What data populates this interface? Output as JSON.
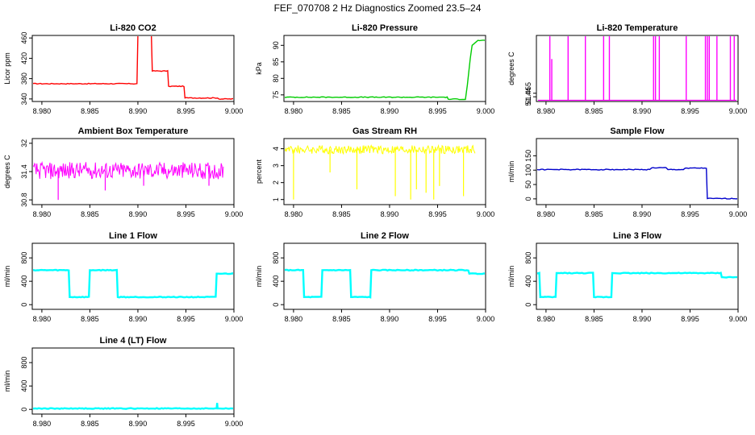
{
  "figure": {
    "title": "FEF_070708  2 Hz Diagnostics Zoomed 23.5–24"
  },
  "chart_data": [
    {
      "type": "line",
      "title": "Li-820 CO2",
      "ylabel": "Licor ppm",
      "color": "#ff0000",
      "xlim": [
        8.979,
        9.0
      ],
      "xticks": [
        "8.980",
        "8.985",
        "8.990",
        "8.995",
        "9.000"
      ],
      "ylim": [
        335,
        465
      ],
      "yticks": [
        340,
        380,
        420,
        460
      ],
      "series": [
        {
          "x": [
            8.979,
            8.9899,
            8.99,
            8.9914,
            8.9915,
            8.9931,
            8.9932,
            8.9948,
            8.9949,
            8.9983,
            8.9984,
            9.0
          ],
          "y": [
            370,
            370,
            470,
            470,
            395,
            395,
            365,
            365,
            342,
            342,
            340,
            340
          ]
        }
      ]
    },
    {
      "type": "line",
      "title": "Li-820 Pressure",
      "ylabel": "kPa",
      "color": "#00cc00",
      "xlim": [
        8.979,
        9.0
      ],
      "xticks": [
        "8.980",
        "8.985",
        "8.990",
        "8.995",
        "9.000"
      ],
      "ylim": [
        73,
        93
      ],
      "yticks": [
        75,
        80,
        85,
        90
      ],
      "series": [
        {
          "x": [
            8.979,
            8.996,
            8.9961,
            8.9979,
            8.9981,
            8.9984,
            8.9986,
            8.9992,
            9.0
          ],
          "y": [
            74.3,
            74.3,
            73.7,
            73.7,
            78,
            86,
            90,
            91.5,
            91.5
          ]
        }
      ]
    },
    {
      "type": "line",
      "title": "Li-820 Temperature",
      "ylabel": "degrees C",
      "color": "#ff00ff",
      "xlim": [
        8.979,
        9.0
      ],
      "xticks": [
        "8.980",
        "8.985",
        "8.990",
        "8.995",
        "9.000"
      ],
      "ylim": [
        51.42,
        51.7
      ],
      "yticks": [
        51.44,
        51.455
      ],
      "series": [
        {
          "x": [
            8.9804,
            8.9806,
            8.9823,
            8.9841,
            8.986,
            8.9866,
            8.9912,
            8.9914,
            8.9918,
            8.9946,
            8.9966,
            8.9968,
            8.997,
            8.9978,
            8.9992,
            8.9996
          ],
          "y": [
            51.7,
            51.6,
            51.7,
            51.7,
            51.7,
            51.7,
            51.7,
            51.7,
            51.7,
            51.7,
            51.7,
            51.7,
            51.7,
            51.7,
            51.7,
            51.7
          ]
        }
      ]
    },
    {
      "type": "line",
      "title": "Ambient Box Temperature",
      "ylabel": "degrees C",
      "color": "#ff00ff",
      "xlim": [
        8.979,
        9.0
      ],
      "xticks": [
        "8.980",
        "8.985",
        "8.990",
        "8.995",
        "9.000"
      ],
      "ylim": [
        30.7,
        32.1
      ],
      "yticks": [
        30.8,
        31.4,
        32.0
      ],
      "series": [
        {
          "base": 31.42,
          "amplitude": 0.18,
          "spikes_x": [
            8.9817,
            8.9866,
            8.9906,
            8.9974
          ],
          "spikes_y": [
            30.8,
            31.0,
            31.1,
            31.1
          ]
        }
      ]
    },
    {
      "type": "line",
      "title": "Gas Stream RH",
      "ylabel": "percent",
      "color": "#ffff00",
      "xlim": [
        8.979,
        9.0
      ],
      "xticks": [
        "8.980",
        "8.985",
        "8.990",
        "8.995",
        "9.000"
      ],
      "ylim": [
        0.7,
        4.6
      ],
      "yticks": [
        1,
        2,
        3,
        4
      ],
      "series": [
        {
          "base": 3.95,
          "amplitude": 0.25,
          "spikes_x": [
            8.98,
            8.9838,
            8.9866,
            8.9906,
            8.9922,
            8.9928,
            8.9938,
            8.9946,
            8.9952,
            8.9977
          ],
          "spikes_y": [
            1.0,
            2.6,
            1.6,
            1.2,
            1.0,
            1.6,
            1.4,
            1.0,
            1.8,
            1.2
          ]
        }
      ]
    },
    {
      "type": "line",
      "title": "Sample Flow",
      "ylabel": "ml/min",
      "color": "#0000cc",
      "xlim": [
        8.979,
        9.0
      ],
      "xticks": [
        "8.980",
        "8.985",
        "8.990",
        "8.995",
        "9.000"
      ],
      "ylim": [
        -20,
        210
      ],
      "yticks": [
        0,
        50,
        100,
        150
      ],
      "series": [
        {
          "x": [
            8.979,
            8.9908,
            8.991,
            8.9925,
            8.9927,
            8.9943,
            8.9945,
            8.9967,
            8.9968,
            9.0
          ],
          "y": [
            102,
            102,
            108,
            108,
            102,
            102,
            107,
            107,
            1,
            1
          ]
        }
      ]
    },
    {
      "type": "line",
      "title": "Line 1 Flow",
      "ylabel": "ml/min",
      "color": "#00ffff",
      "xlim": [
        8.979,
        9.0
      ],
      "xticks": [
        "8.980",
        "8.985",
        "8.990",
        "8.995",
        "9.000"
      ],
      "ylim": [
        -80,
        1050
      ],
      "yticks": [
        0,
        400,
        800
      ],
      "series": [
        {
          "x": [
            8.979,
            8.9828,
            8.9829,
            8.9849,
            8.985,
            8.9878,
            8.9879,
            8.9981,
            8.9982,
            9.0
          ],
          "y": [
            590,
            590,
            130,
            130,
            590,
            590,
            130,
            130,
            530,
            530
          ]
        }
      ]
    },
    {
      "type": "line",
      "title": "Line 2 Flow",
      "ylabel": "ml/min",
      "color": "#00ffff",
      "xlim": [
        8.979,
        9.0
      ],
      "xticks": [
        "8.980",
        "8.985",
        "8.990",
        "8.995",
        "9.000"
      ],
      "ylim": [
        -80,
        1050
      ],
      "yticks": [
        0,
        400,
        800
      ],
      "series": [
        {
          "x": [
            8.979,
            8.981,
            8.9811,
            8.9829,
            8.983,
            8.9859,
            8.986,
            8.988,
            8.9881,
            8.9982,
            8.9983,
            9.0
          ],
          "y": [
            590,
            590,
            130,
            130,
            590,
            590,
            130,
            130,
            590,
            590,
            530,
            530
          ]
        }
      ]
    },
    {
      "type": "line",
      "title": "Line 3 Flow",
      "ylabel": "ml/min",
      "color": "#00ffff",
      "xlim": [
        8.979,
        9.0
      ],
      "xticks": [
        "8.980",
        "8.985",
        "8.990",
        "8.995",
        "9.000"
      ],
      "ylim": [
        -80,
        1050
      ],
      "yticks": [
        0,
        400,
        800
      ],
      "series": [
        {
          "x": [
            8.979,
            8.9793,
            8.9794,
            8.981,
            8.9811,
            8.9849,
            8.985,
            8.9868,
            8.9869,
            8.9982,
            8.9983,
            9.0
          ],
          "y": [
            540,
            540,
            130,
            130,
            540,
            540,
            130,
            130,
            540,
            540,
            470,
            470
          ]
        }
      ]
    },
    {
      "type": "line",
      "title": "Line 4 (LT) Flow",
      "ylabel": "ml/min",
      "color": "#00ffff",
      "xlim": [
        8.979,
        9.0
      ],
      "xticks": [
        "8.980",
        "8.985",
        "8.990",
        "8.995",
        "9.000"
      ],
      "ylim": [
        -80,
        1050
      ],
      "yticks": [
        0,
        400,
        800
      ],
      "series": [
        {
          "x": [
            8.979,
            8.9982,
            8.99825,
            8.9983,
            9.0
          ],
          "y": [
            15,
            15,
            110,
            15,
            15
          ]
        }
      ]
    }
  ]
}
